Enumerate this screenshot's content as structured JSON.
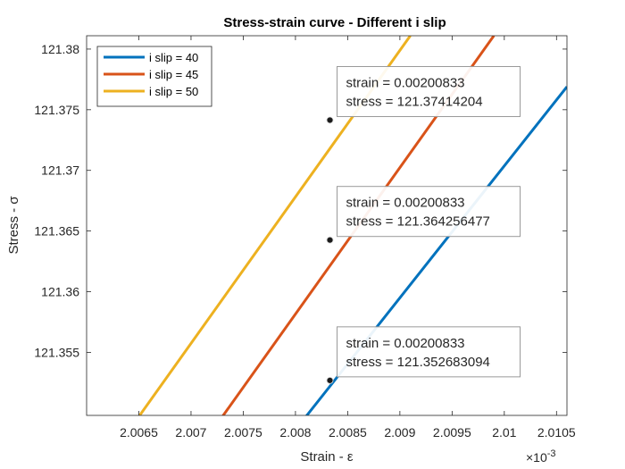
{
  "chart_data": {
    "type": "line",
    "title": "Stress-strain curve - Different i slip",
    "xlabel": "Strain - ε",
    "ylabel": "Stress - σ",
    "x_exponent_label": "×10",
    "x_exponent_power": "-3",
    "xlim": [
      0.002006,
      0.0020106
    ],
    "ylim": [
      121.3498,
      121.3811
    ],
    "x_ticks": [
      0.0020065,
      0.002007,
      0.0020075,
      0.002008,
      0.0020085,
      0.002009,
      0.0020095,
      0.00201,
      0.0020105
    ],
    "x_tick_labels": [
      "2.0065",
      "2.007",
      "2.0075",
      "2.008",
      "2.0085",
      "2.009",
      "2.0095",
      "2.01",
      "2.0105"
    ],
    "y_ticks": [
      121.355,
      121.36,
      121.365,
      121.37,
      121.375,
      121.38
    ],
    "y_tick_labels": [
      "121.355",
      "121.36",
      "121.365",
      "121.37",
      "121.375",
      "121.38"
    ],
    "grid": false,
    "legend_position": "top-left",
    "series": [
      {
        "name": "i slip = 40",
        "color": "#0072BD",
        "x": [
          0.0020081,
          0.0020106
        ],
        "y": [
          121.3497,
          121.3769
        ]
      },
      {
        "name": "i slip = 45",
        "color": "#D95319",
        "x": [
          0.0020073,
          0.0020099
        ],
        "y": [
          121.3497,
          121.3811
        ]
      },
      {
        "name": "i slip = 50",
        "color": "#EDB120",
        "x": [
          0.0020065,
          0.0020091
        ],
        "y": [
          121.3497,
          121.3811
        ]
      }
    ],
    "datatips": [
      {
        "x": 0.00200833,
        "y": 121.352683094,
        "line1": "strain = 0.00200833",
        "line2": "stress = 121.352683094"
      },
      {
        "x": 0.00200833,
        "y": 121.364256477,
        "line1": "strain = 0.00200833",
        "line2": "stress = 121.364256477"
      },
      {
        "x": 0.00200833,
        "y": 121.37414204,
        "line1": "strain = 0.00200833",
        "line2": "stress = 121.37414204"
      }
    ]
  }
}
